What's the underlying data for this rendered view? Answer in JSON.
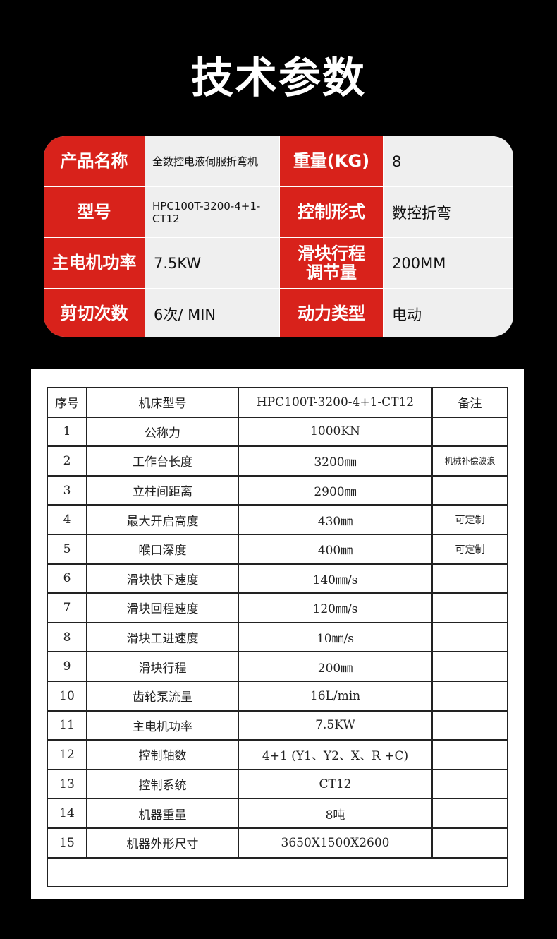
{
  "title": "技术参数",
  "spec": [
    {
      "label": "产品名称",
      "value": "全数控电液伺服折弯机",
      "label2": "重量(KG)",
      "value2": "8"
    },
    {
      "label": "型号",
      "value": "HPC100T-3200-4+1-CT12",
      "label2": "控制形式",
      "value2": "数控折弯"
    },
    {
      "label": "主电机功率",
      "value": "7.5KW",
      "label2": "滑块行程调节量",
      "value2": "200MM"
    },
    {
      "label": "剪切次数",
      "value": "6次/ MIN",
      "label2": "动力类型",
      "value2": "电动"
    }
  ],
  "table": {
    "headers": [
      "序号",
      "机床型号",
      "HPC100T-3200-4+1-CT12",
      "备注"
    ],
    "rows": [
      [
        "1",
        "公称力",
        "1000KN",
        ""
      ],
      [
        "2",
        "工作台长度",
        "3200㎜",
        "机械补偿波浪"
      ],
      [
        "3",
        "立柱间距离",
        "2900㎜",
        ""
      ],
      [
        "4",
        "最大开启高度",
        "430㎜",
        "可定制"
      ],
      [
        "5",
        "喉口深度",
        "400㎜",
        "可定制"
      ],
      [
        "6",
        "滑块快下速度",
        "140㎜/s",
        ""
      ],
      [
        "7",
        "滑块回程速度",
        "120㎜/s",
        ""
      ],
      [
        "8",
        "滑块工进速度",
        "10㎜/s",
        ""
      ],
      [
        "9",
        "滑块行程",
        "200㎜",
        ""
      ],
      [
        "10",
        "齿轮泵流量",
        "16L/min",
        ""
      ],
      [
        "11",
        "主电机功率",
        "7.5KW",
        ""
      ],
      [
        "12",
        "控制轴数",
        "4+1 (Y1、Y2、X、R +C)",
        ""
      ],
      [
        "13",
        "控制系统",
        "CT12",
        ""
      ],
      [
        "14",
        "机器重量",
        "8吨",
        ""
      ],
      [
        "15",
        "机器外形尺寸",
        "3650X1500X2600",
        ""
      ]
    ]
  }
}
